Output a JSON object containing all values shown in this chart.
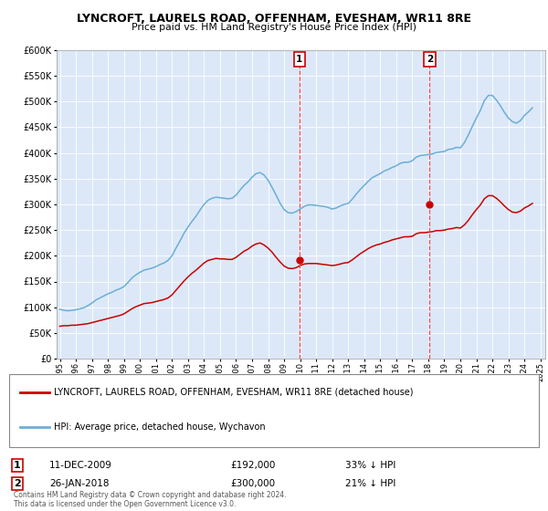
{
  "title": "LYNCROFT, LAURELS ROAD, OFFENHAM, EVESHAM, WR11 8RE",
  "subtitle": "Price paid vs. HM Land Registry's House Price Index (HPI)",
  "plot_bg_color": "#dce8f8",
  "ylim": [
    0,
    600000
  ],
  "yticks": [
    0,
    50000,
    100000,
    150000,
    200000,
    250000,
    300000,
    350000,
    400000,
    450000,
    500000,
    550000,
    600000
  ],
  "xlim_start": 1994.8,
  "xlim_end": 2025.3,
  "sale1_x": 2009.95,
  "sale1_y": 192000,
  "sale1_label": "1",
  "sale2_x": 2018.08,
  "sale2_y": 300000,
  "sale2_label": "2",
  "vline_color": "#ff4444",
  "hpi_color": "#6baed6",
  "price_color": "#cc0000",
  "legend1_text": "LYNCROFT, LAURELS ROAD, OFFENHAM, EVESHAM, WR11 8RE (detached house)",
  "legend2_text": "HPI: Average price, detached house, Wychavon",
  "table_row1": [
    "1",
    "11-DEC-2009",
    "£192,000",
    "33% ↓ HPI"
  ],
  "table_row2": [
    "2",
    "26-JAN-2018",
    "£300,000",
    "21% ↓ HPI"
  ],
  "footer": "Contains HM Land Registry data © Crown copyright and database right 2024.\nThis data is licensed under the Open Government Licence v3.0.",
  "hpi_data_x": [
    1995.0,
    1995.25,
    1995.5,
    1995.75,
    1996.0,
    1996.25,
    1996.5,
    1996.75,
    1997.0,
    1997.25,
    1997.5,
    1997.75,
    1998.0,
    1998.25,
    1998.5,
    1998.75,
    1999.0,
    1999.25,
    1999.5,
    1999.75,
    2000.0,
    2000.25,
    2000.5,
    2000.75,
    2001.0,
    2001.25,
    2001.5,
    2001.75,
    2002.0,
    2002.25,
    2002.5,
    2002.75,
    2003.0,
    2003.25,
    2003.5,
    2003.75,
    2004.0,
    2004.25,
    2004.5,
    2004.75,
    2005.0,
    2005.25,
    2005.5,
    2005.75,
    2006.0,
    2006.25,
    2006.5,
    2006.75,
    2007.0,
    2007.25,
    2007.5,
    2007.75,
    2008.0,
    2008.25,
    2008.5,
    2008.75,
    2009.0,
    2009.25,
    2009.5,
    2009.75,
    2010.0,
    2010.25,
    2010.5,
    2010.75,
    2011.0,
    2011.25,
    2011.5,
    2011.75,
    2012.0,
    2012.25,
    2012.5,
    2012.75,
    2013.0,
    2013.25,
    2013.5,
    2013.75,
    2014.0,
    2014.25,
    2014.5,
    2014.75,
    2015.0,
    2015.25,
    2015.5,
    2015.75,
    2016.0,
    2016.25,
    2016.5,
    2016.75,
    2017.0,
    2017.25,
    2017.5,
    2017.75,
    2018.0,
    2018.25,
    2018.5,
    2018.75,
    2019.0,
    2019.25,
    2019.5,
    2019.75,
    2020.0,
    2020.25,
    2020.5,
    2020.75,
    2021.0,
    2021.25,
    2021.5,
    2021.75,
    2022.0,
    2022.25,
    2022.5,
    2022.75,
    2023.0,
    2023.25,
    2023.5,
    2023.75,
    2024.0,
    2024.25,
    2024.5
  ],
  "hpi_data_y": [
    96000,
    94000,
    93000,
    94000,
    95000,
    97000,
    99000,
    103000,
    108000,
    114000,
    118000,
    122000,
    126000,
    129000,
    133000,
    136000,
    140000,
    148000,
    157000,
    163000,
    168000,
    172000,
    174000,
    176000,
    179000,
    183000,
    186000,
    191000,
    200000,
    215000,
    229000,
    244000,
    256000,
    267000,
    277000,
    289000,
    300000,
    308000,
    312000,
    314000,
    313000,
    312000,
    311000,
    312000,
    318000,
    328000,
    337000,
    344000,
    353000,
    360000,
    362000,
    357000,
    347000,
    333000,
    318000,
    302000,
    290000,
    284000,
    283000,
    286000,
    291000,
    296000,
    299000,
    299000,
    298000,
    297000,
    296000,
    294000,
    291000,
    293000,
    297000,
    300000,
    302000,
    310000,
    320000,
    329000,
    337000,
    345000,
    352000,
    356000,
    360000,
    365000,
    368000,
    372000,
    375000,
    380000,
    382000,
    382000,
    385000,
    392000,
    395000,
    396000,
    397000,
    398000,
    401000,
    402000,
    403000,
    407000,
    408000,
    411000,
    410000,
    420000,
    435000,
    452000,
    468000,
    483000,
    502000,
    512000,
    512000,
    503000,
    492000,
    479000,
    468000,
    461000,
    458000,
    463000,
    473000,
    480000,
    488000
  ],
  "price_data_x": [
    1995.0,
    1995.25,
    1995.5,
    1995.75,
    1996.0,
    1996.25,
    1996.5,
    1996.75,
    1997.0,
    1997.25,
    1997.5,
    1997.75,
    1998.0,
    1998.25,
    1998.5,
    1998.75,
    1999.0,
    1999.25,
    1999.5,
    1999.75,
    2000.0,
    2000.25,
    2000.5,
    2000.75,
    2001.0,
    2001.25,
    2001.5,
    2001.75,
    2002.0,
    2002.25,
    2002.5,
    2002.75,
    2003.0,
    2003.25,
    2003.5,
    2003.75,
    2004.0,
    2004.25,
    2004.5,
    2004.75,
    2005.0,
    2005.25,
    2005.5,
    2005.75,
    2006.0,
    2006.25,
    2006.5,
    2006.75,
    2007.0,
    2007.25,
    2007.5,
    2007.75,
    2008.0,
    2008.25,
    2008.5,
    2008.75,
    2009.0,
    2009.25,
    2009.5,
    2009.75,
    2010.0,
    2010.25,
    2010.5,
    2010.75,
    2011.0,
    2011.25,
    2011.5,
    2011.75,
    2012.0,
    2012.25,
    2012.5,
    2012.75,
    2013.0,
    2013.25,
    2013.5,
    2013.75,
    2014.0,
    2014.25,
    2014.5,
    2014.75,
    2015.0,
    2015.25,
    2015.5,
    2015.75,
    2016.0,
    2016.25,
    2016.5,
    2016.75,
    2017.0,
    2017.25,
    2017.5,
    2017.75,
    2018.0,
    2018.25,
    2018.5,
    2018.75,
    2019.0,
    2019.25,
    2019.5,
    2019.75,
    2020.0,
    2020.25,
    2020.5,
    2020.75,
    2021.0,
    2021.25,
    2021.5,
    2021.75,
    2022.0,
    2022.25,
    2022.5,
    2022.75,
    2023.0,
    2023.25,
    2023.5,
    2023.75,
    2024.0,
    2024.25,
    2024.5
  ],
  "price_data_y": [
    63000,
    64000,
    64000,
    65000,
    65000,
    66000,
    67000,
    68000,
    70000,
    72000,
    74000,
    76000,
    78000,
    80000,
    82000,
    84000,
    87000,
    92000,
    97000,
    101000,
    104000,
    107000,
    108000,
    109000,
    111000,
    113000,
    115000,
    118000,
    124000,
    133000,
    142000,
    151000,
    159000,
    166000,
    172000,
    179000,
    186000,
    191000,
    193000,
    195000,
    194000,
    194000,
    193000,
    193000,
    197000,
    203000,
    209000,
    213000,
    219000,
    223000,
    225000,
    221000,
    215000,
    207000,
    197000,
    188000,
    180000,
    176000,
    175000,
    177000,
    181000,
    184000,
    185000,
    185000,
    185000,
    184000,
    183000,
    182000,
    181000,
    182000,
    184000,
    186000,
    187000,
    192000,
    198000,
    204000,
    209000,
    214000,
    218000,
    221000,
    223000,
    226000,
    228000,
    231000,
    233000,
    235000,
    237000,
    237000,
    238000,
    243000,
    245000,
    245000,
    246000,
    247000,
    249000,
    249000,
    250000,
    252000,
    253000,
    255000,
    254000,
    260000,
    269000,
    280000,
    290000,
    299000,
    311000,
    317000,
    317000,
    312000,
    305000,
    297000,
    290000,
    285000,
    284000,
    287000,
    293000,
    297000,
    302000
  ]
}
